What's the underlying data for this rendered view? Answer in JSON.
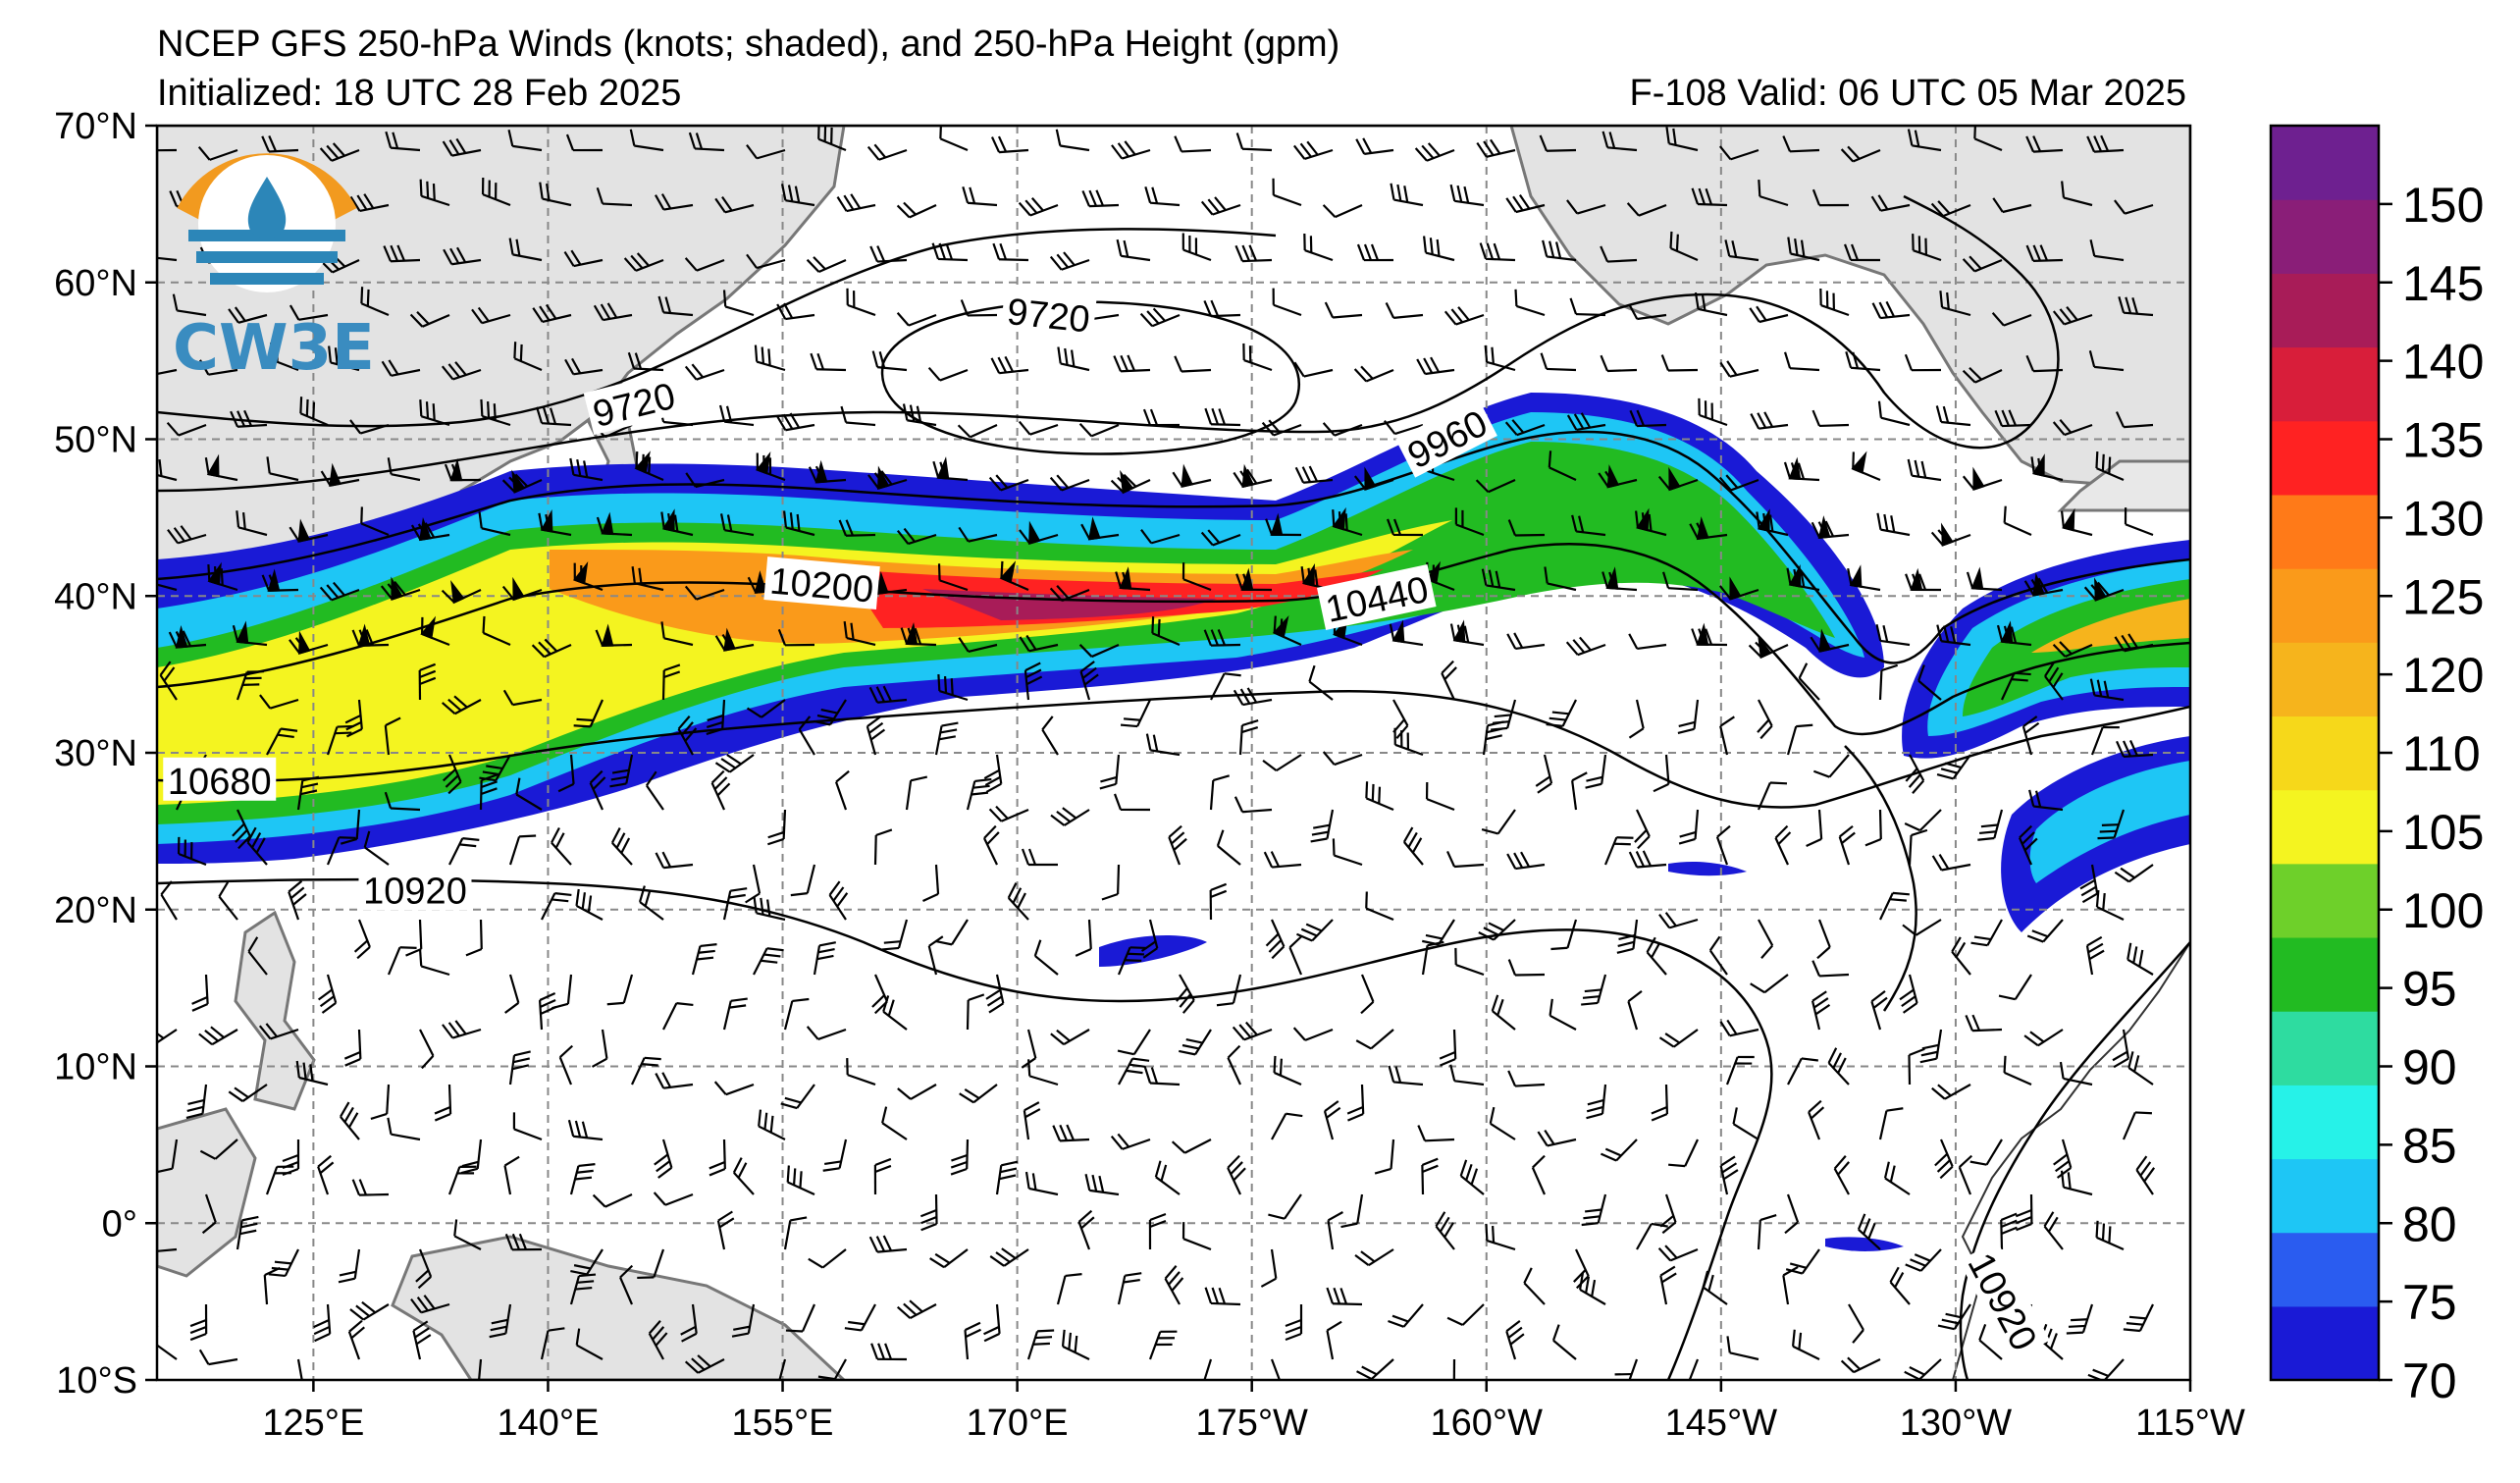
{
  "header": {
    "title": "NCEP GFS 250-hPa Winds (knots; shaded), and 250-hPa Height (gpm)",
    "initialized": "Initialized: 18 UTC 28 Feb 2025",
    "valid": "F-108  Valid: 06 UTC 05 Mar 2025"
  },
  "logo": {
    "text": "CW3E"
  },
  "map": {
    "lon_range": [
      115,
      245
    ],
    "lat_range": [
      -10,
      70
    ],
    "lon_ticks": [
      {
        "lon": 125,
        "label": "125°E"
      },
      {
        "lon": 140,
        "label": "140°E"
      },
      {
        "lon": 155,
        "label": "155°E"
      },
      {
        "lon": 170,
        "label": "170°E"
      },
      {
        "lon": 185,
        "label": "175°W"
      },
      {
        "lon": 200,
        "label": "160°W"
      },
      {
        "lon": 215,
        "label": "145°W"
      },
      {
        "lon": 230,
        "label": "130°W"
      },
      {
        "lon": 245,
        "label": "115°W"
      }
    ],
    "lat_ticks": [
      {
        "lat": 70,
        "label": "70°N"
      },
      {
        "lat": 60,
        "label": "60°N"
      },
      {
        "lat": 50,
        "label": "50°N"
      },
      {
        "lat": 40,
        "label": "40°N"
      },
      {
        "lat": 30,
        "label": "30°N"
      },
      {
        "lat": 20,
        "label": "20°N"
      },
      {
        "lat": 10,
        "label": "10°N"
      },
      {
        "lat": 0,
        "label": "0°"
      },
      {
        "lat": -10,
        "label": "10°S"
      }
    ],
    "grid": true,
    "contour_labels": [
      {
        "text": "9720",
        "lon": 145.5,
        "lat": 52.2,
        "angle": -14
      },
      {
        "text": "9720",
        "lon": 172.0,
        "lat": 57.9,
        "angle": 6
      },
      {
        "text": "9960",
        "lon": 197.5,
        "lat": 50.0,
        "angle": -27
      },
      {
        "text": "10200",
        "lon": 157.5,
        "lat": 40.7,
        "angle": 5
      },
      {
        "text": "10440",
        "lon": 193.0,
        "lat": 39.8,
        "angle": -12
      },
      {
        "text": "10680",
        "lon": 119.0,
        "lat": 28.2,
        "angle": 0
      },
      {
        "text": "10920",
        "lon": 131.5,
        "lat": 21.2,
        "angle": 0
      },
      {
        "text": "10920",
        "lon": 233.0,
        "lat": -5.0,
        "angle": 62
      }
    ]
  },
  "colorbar": {
    "ticks": [
      "70",
      "75",
      "80",
      "85",
      "90",
      "95",
      "100",
      "105",
      "110",
      "120",
      "125",
      "130",
      "135",
      "140",
      "145",
      "150"
    ],
    "colors": [
      "#1a1ad6",
      "#2a5cf0",
      "#1ec6f5",
      "#26f2e8",
      "#2edca0",
      "#22bb22",
      "#6ed02a",
      "#f4f420",
      "#f6d81a",
      "#f6b41c",
      "#fa9a1a",
      "#ff7a18",
      "#ff2222",
      "#d81e3a",
      "#a81c58",
      "#8a1e78",
      "#6e2090"
    ]
  }
}
